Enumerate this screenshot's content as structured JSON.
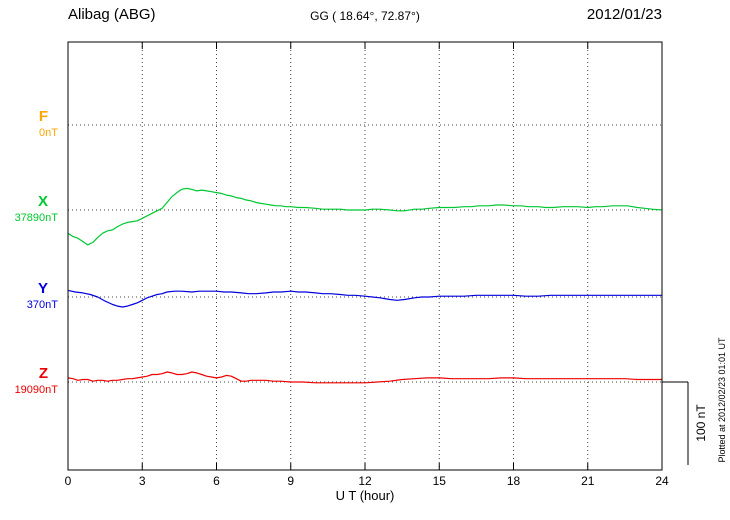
{
  "header": {
    "station": "Alibag (ABG)",
    "coords": "GG ( 18.64°,  72.87°)",
    "date": "2012/01/23"
  },
  "credit": "Plotted at 2012/02/23 01:01 UT",
  "scale_bar": {
    "label": "100 nT",
    "nT": 100
  },
  "chart_data": {
    "type": "line",
    "title": "Alibag (ABG)",
    "subtitle": "GG ( 18.64°,  72.87°)",
    "date": "2012/01/23",
    "xlabel": "U T (hour)",
    "xlim": [
      0,
      24
    ],
    "x_ticks": [
      0,
      3,
      6,
      9,
      12,
      15,
      18,
      21,
      24
    ],
    "grid": "dotted",
    "legend_position": "left",
    "scale_bar_nT": 100,
    "series": [
      {
        "name": "F",
        "baseline_label": "0nT",
        "baseline_nT": 0,
        "color": "#FFA500",
        "points": []
      },
      {
        "name": "X",
        "baseline_label": "37890nT",
        "baseline_nT": 37890,
        "color": "#00C832",
        "points": [
          [
            0,
            -28
          ],
          [
            0.2,
            -32
          ],
          [
            0.4,
            -34
          ],
          [
            0.6,
            -38
          ],
          [
            0.8,
            -42
          ],
          [
            1,
            -39
          ],
          [
            1.2,
            -33
          ],
          [
            1.4,
            -28
          ],
          [
            1.6,
            -25
          ],
          [
            1.8,
            -24
          ],
          [
            2,
            -20
          ],
          [
            2.2,
            -17
          ],
          [
            2.4,
            -15
          ],
          [
            2.6,
            -14
          ],
          [
            2.8,
            -13
          ],
          [
            3,
            -10
          ],
          [
            3.2,
            -7
          ],
          [
            3.4,
            -4
          ],
          [
            3.6,
            -1
          ],
          [
            3.8,
            2
          ],
          [
            4,
            9
          ],
          [
            4.2,
            16
          ],
          [
            4.4,
            21
          ],
          [
            4.6,
            25
          ],
          [
            4.8,
            26
          ],
          [
            5,
            25
          ],
          [
            5.2,
            23
          ],
          [
            5.4,
            24
          ],
          [
            5.6,
            23
          ],
          [
            5.8,
            22
          ],
          [
            6,
            21
          ],
          [
            6.2,
            20
          ],
          [
            6.4,
            18
          ],
          [
            6.6,
            17
          ],
          [
            6.8,
            15
          ],
          [
            7,
            14
          ],
          [
            7.2,
            12
          ],
          [
            7.4,
            11
          ],
          [
            7.6,
            9
          ],
          [
            7.8,
            8
          ],
          [
            8,
            7
          ],
          [
            8.2,
            6
          ],
          [
            8.4,
            5
          ],
          [
            8.6,
            5
          ],
          [
            8.8,
            4
          ],
          [
            9,
            4
          ],
          [
            9.3,
            3
          ],
          [
            9.6,
            3
          ],
          [
            10,
            2
          ],
          [
            10.3,
            1
          ],
          [
            10.6,
            1
          ],
          [
            11,
            1
          ],
          [
            11.3,
            0
          ],
          [
            11.6,
            0
          ],
          [
            12,
            0
          ],
          [
            12.3,
            1
          ],
          [
            12.6,
            1
          ],
          [
            13,
            0
          ],
          [
            13.3,
            -1
          ],
          [
            13.6,
            -1
          ],
          [
            14,
            1
          ],
          [
            14.3,
            1
          ],
          [
            14.6,
            2
          ],
          [
            15,
            3
          ],
          [
            15.3,
            3
          ],
          [
            15.6,
            3
          ],
          [
            16,
            4
          ],
          [
            16.3,
            4
          ],
          [
            16.6,
            5
          ],
          [
            17,
            5
          ],
          [
            17.3,
            6
          ],
          [
            17.6,
            6
          ],
          [
            18,
            5
          ],
          [
            18.3,
            5
          ],
          [
            18.6,
            4
          ],
          [
            19,
            4
          ],
          [
            19.3,
            3
          ],
          [
            19.6,
            3
          ],
          [
            20,
            4
          ],
          [
            20.3,
            4
          ],
          [
            20.6,
            4
          ],
          [
            21,
            3
          ],
          [
            21.3,
            4
          ],
          [
            21.6,
            4
          ],
          [
            22,
            5
          ],
          [
            22.3,
            5
          ],
          [
            22.6,
            5
          ],
          [
            23,
            3
          ],
          [
            23.3,
            2
          ],
          [
            23.6,
            1
          ],
          [
            24,
            0
          ]
        ]
      },
      {
        "name": "Y",
        "baseline_label": "370nT",
        "baseline_nT": 370,
        "color": "#0000DD",
        "points": [
          [
            0,
            8
          ],
          [
            0.3,
            6
          ],
          [
            0.6,
            5
          ],
          [
            0.9,
            3
          ],
          [
            1.2,
            0
          ],
          [
            1.5,
            -5
          ],
          [
            1.8,
            -9
          ],
          [
            2,
            -11
          ],
          [
            2.2,
            -12
          ],
          [
            2.4,
            -11
          ],
          [
            2.6,
            -9
          ],
          [
            2.8,
            -7
          ],
          [
            3,
            -4
          ],
          [
            3.2,
            -1
          ],
          [
            3.4,
            1
          ],
          [
            3.6,
            3
          ],
          [
            3.8,
            4
          ],
          [
            4,
            6
          ],
          [
            4.3,
            7
          ],
          [
            4.6,
            7
          ],
          [
            5,
            6
          ],
          [
            5.3,
            7
          ],
          [
            5.6,
            7
          ],
          [
            6,
            7
          ],
          [
            6.3,
            6
          ],
          [
            6.6,
            6
          ],
          [
            7,
            5
          ],
          [
            7.3,
            4
          ],
          [
            7.6,
            4
          ],
          [
            8,
            5
          ],
          [
            8.3,
            6
          ],
          [
            8.6,
            6
          ],
          [
            9,
            7
          ],
          [
            9.3,
            6
          ],
          [
            9.6,
            6
          ],
          [
            10,
            5
          ],
          [
            10.3,
            4
          ],
          [
            10.6,
            4
          ],
          [
            11,
            3
          ],
          [
            11.3,
            2
          ],
          [
            11.6,
            2
          ],
          [
            12,
            1
          ],
          [
            12.3,
            0
          ],
          [
            12.6,
            -1
          ],
          [
            13,
            -3
          ],
          [
            13.3,
            -4
          ],
          [
            13.6,
            -3
          ],
          [
            14,
            -1
          ],
          [
            14.3,
            0
          ],
          [
            14.6,
            0
          ],
          [
            15,
            1
          ],
          [
            15.5,
            1
          ],
          [
            16,
            1
          ],
          [
            16.5,
            2
          ],
          [
            17,
            2
          ],
          [
            17.5,
            2
          ],
          [
            18,
            2
          ],
          [
            18.5,
            1
          ],
          [
            19,
            1
          ],
          [
            19.5,
            2
          ],
          [
            20,
            2
          ],
          [
            20.5,
            2
          ],
          [
            21,
            2
          ],
          [
            21.5,
            2
          ],
          [
            22,
            2
          ],
          [
            22.5,
            2
          ],
          [
            23,
            2
          ],
          [
            23.5,
            2
          ],
          [
            24,
            2
          ]
        ]
      },
      {
        "name": "Z",
        "baseline_label": "19090nT",
        "baseline_nT": 19090,
        "color": "#EE0000",
        "points": [
          [
            0,
            5
          ],
          [
            0.2,
            4
          ],
          [
            0.4,
            2
          ],
          [
            0.6,
            3
          ],
          [
            0.8,
            3
          ],
          [
            1,
            1
          ],
          [
            1.2,
            2
          ],
          [
            1.4,
            2
          ],
          [
            1.6,
            1
          ],
          [
            1.8,
            2
          ],
          [
            2,
            2
          ],
          [
            2.2,
            3
          ],
          [
            2.4,
            4
          ],
          [
            2.6,
            4
          ],
          [
            2.8,
            5
          ],
          [
            3,
            6
          ],
          [
            3.2,
            7
          ],
          [
            3.4,
            9
          ],
          [
            3.6,
            9
          ],
          [
            3.8,
            10
          ],
          [
            4,
            12
          ],
          [
            4.2,
            11
          ],
          [
            4.4,
            9
          ],
          [
            4.6,
            9
          ],
          [
            4.8,
            10
          ],
          [
            5,
            12
          ],
          [
            5.2,
            11
          ],
          [
            5.4,
            9
          ],
          [
            5.6,
            7
          ],
          [
            5.8,
            6
          ],
          [
            6,
            5
          ],
          [
            6.2,
            6
          ],
          [
            6.4,
            8
          ],
          [
            6.6,
            7
          ],
          [
            6.8,
            4
          ],
          [
            7,
            1
          ],
          [
            7.2,
            1
          ],
          [
            7.4,
            2
          ],
          [
            7.6,
            2
          ],
          [
            7.8,
            2
          ],
          [
            8,
            2
          ],
          [
            8.3,
            1
          ],
          [
            8.6,
            1
          ],
          [
            9,
            0
          ],
          [
            9.5,
            0
          ],
          [
            10,
            -1
          ],
          [
            10.5,
            -1
          ],
          [
            11,
            -1
          ],
          [
            11.5,
            -1
          ],
          [
            12,
            -1
          ],
          [
            12.5,
            0
          ],
          [
            13,
            1
          ],
          [
            13.5,
            3
          ],
          [
            14,
            4
          ],
          [
            14.5,
            5
          ],
          [
            15,
            5
          ],
          [
            15.5,
            4
          ],
          [
            16,
            4
          ],
          [
            16.5,
            4
          ],
          [
            17,
            4
          ],
          [
            17.5,
            5
          ],
          [
            18,
            5
          ],
          [
            18.5,
            4
          ],
          [
            19,
            4
          ],
          [
            19.5,
            4
          ],
          [
            20,
            4
          ],
          [
            20.5,
            4
          ],
          [
            21,
            4
          ],
          [
            21.5,
            4
          ],
          [
            22,
            4
          ],
          [
            22.5,
            4
          ],
          [
            23,
            3
          ],
          [
            23.5,
            3
          ],
          [
            24,
            3
          ]
        ]
      }
    ]
  }
}
